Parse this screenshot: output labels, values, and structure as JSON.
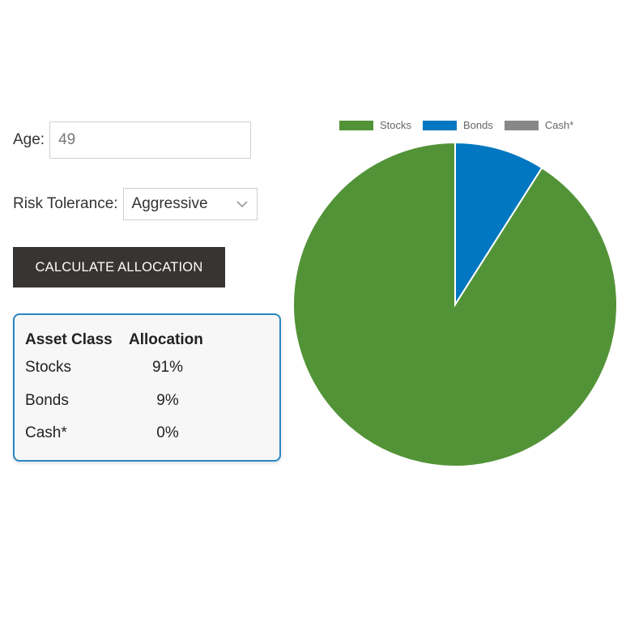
{
  "form": {
    "age_label": "Age:",
    "age_value": "49",
    "risk_label": "Risk Tolerance:",
    "risk_value": "Aggressive",
    "calculate_label": "CALCULATE ALLOCATION"
  },
  "table": {
    "headers": [
      "Asset Class",
      "Allocation"
    ],
    "rows": [
      {
        "asset": "Stocks",
        "allocation": "91%"
      },
      {
        "asset": "Bonds",
        "allocation": "9%"
      },
      {
        "asset": "Cash*",
        "allocation": "0%"
      }
    ]
  },
  "colors": {
    "stocks": "#529337",
    "bonds": "#0077c0",
    "cash": "#888888",
    "button_bg": "#373432",
    "card_border": "#2a87c3"
  },
  "chart_data": {
    "type": "pie",
    "title": "",
    "legend_position": "top",
    "series": [
      {
        "name": "Stocks",
        "value": 91,
        "color": "#529337"
      },
      {
        "name": "Bonds",
        "value": 9,
        "color": "#0077c0"
      },
      {
        "name": "Cash*",
        "value": 0,
        "color": "#888888"
      }
    ]
  }
}
